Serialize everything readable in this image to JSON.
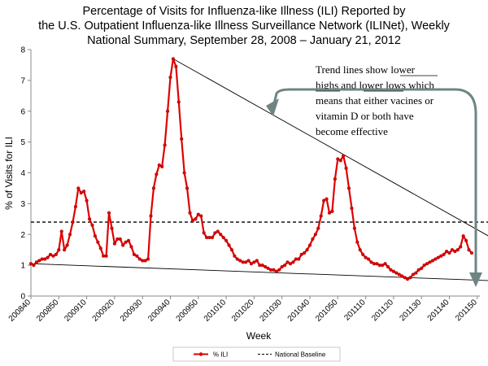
{
  "chart_data": {
    "type": "line",
    "title_lines": [
      "Percentage of Visits for Influenza-like Illness (ILI) Reported by",
      "the U.S. Outpatient Influenza-like Illness Surveillance Network (ILINet), Weekly",
      "National Summary, September 28, 2008 – January 21, 2012"
    ],
    "xlabel": "Week",
    "ylabel": "% of Visits for ILI",
    "ylim": [
      0,
      8
    ],
    "yticks": [
      0,
      1,
      2,
      3,
      4,
      5,
      6,
      7,
      8
    ],
    "xticks": [
      "200840",
      "200850",
      "200910",
      "200920",
      "200930",
      "200940",
      "200950",
      "201010",
      "201020",
      "201030",
      "201040",
      "201050",
      "201110",
      "201120",
      "201130",
      "201140",
      "201150"
    ],
    "series": [
      {
        "name": "% ILI",
        "color": "#e00000",
        "values": [
          1.05,
          1.0,
          1.1,
          1.15,
          1.2,
          1.2,
          1.25,
          1.35,
          1.3,
          1.35,
          1.5,
          2.1,
          1.5,
          1.65,
          2.0,
          2.4,
          2.9,
          3.5,
          3.35,
          3.4,
          3.1,
          2.5,
          2.3,
          1.95,
          1.75,
          1.55,
          1.3,
          1.3,
          2.7,
          2.2,
          1.7,
          1.85,
          1.85,
          1.65,
          1.75,
          1.8,
          1.6,
          1.35,
          1.3,
          1.2,
          1.15,
          1.15,
          1.2,
          2.6,
          3.5,
          3.95,
          4.25,
          4.2,
          4.9,
          6.0,
          7.1,
          7.7,
          7.45,
          6.3,
          5.1,
          4.0,
          3.5,
          2.7,
          2.45,
          2.5,
          2.65,
          2.6,
          2.05,
          1.9,
          1.9,
          1.9,
          2.05,
          2.1,
          2.0,
          1.9,
          1.8,
          1.65,
          1.5,
          1.3,
          1.2,
          1.15,
          1.1,
          1.1,
          1.15,
          1.05,
          1.1,
          1.15,
          1.0,
          1.0,
          0.95,
          0.9,
          0.85,
          0.85,
          0.8,
          0.85,
          0.95,
          1.0,
          1.1,
          1.05,
          1.1,
          1.2,
          1.2,
          1.35,
          1.4,
          1.5,
          1.65,
          1.85,
          2.0,
          2.2,
          2.6,
          3.1,
          3.15,
          2.7,
          2.75,
          3.8,
          4.45,
          4.4,
          4.55,
          4.15,
          3.5,
          2.85,
          2.2,
          1.75,
          1.5,
          1.35,
          1.25,
          1.2,
          1.1,
          1.05,
          1.05,
          1.0,
          1.0,
          1.05,
          0.95,
          0.85,
          0.8,
          0.75,
          0.7,
          0.65,
          0.6,
          0.55,
          0.6,
          0.7,
          0.75,
          0.85,
          0.9,
          1.0,
          1.05,
          1.1,
          1.15,
          1.2,
          1.25,
          1.3,
          1.35,
          1.45,
          1.4,
          1.5,
          1.45,
          1.5,
          1.6,
          1.95,
          1.8,
          1.5,
          1.4
        ]
      },
      {
        "name": "National Baseline",
        "color": "#000000",
        "dash": "dashed",
        "constant": 2.4
      }
    ],
    "trend_lines": [
      {
        "from": [
          51,
          7.7
        ],
        "to": [
          165,
          1.9
        ],
        "note": "upper trend through peaks"
      },
      {
        "from": [
          0,
          1.05
        ],
        "to": [
          165,
          0.5
        ],
        "note": "lower trend through lows"
      }
    ],
    "marker": {
      "x": 164,
      "y": 1.8,
      "symbol": "x",
      "color": "#e00000"
    },
    "annotation": {
      "lines": [
        "Trend lines show lower",
        "highs and lower lows which",
        "means that either vacines or",
        "vitamin D or both have",
        "become effective"
      ]
    },
    "legend": {
      "placement": "bottom-center",
      "entries": [
        "% ILI",
        "National Baseline"
      ]
    }
  }
}
